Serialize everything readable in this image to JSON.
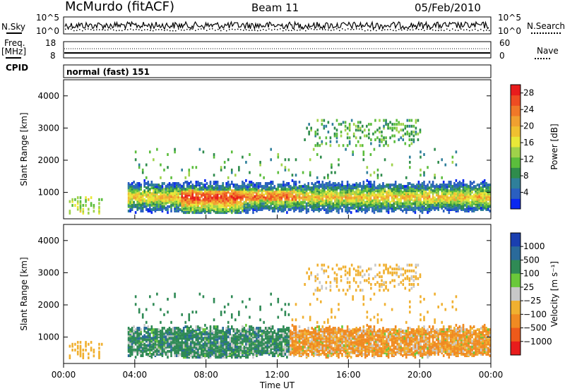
{
  "header": {
    "radar": "McMurdo (fitACF)",
    "beam": "Beam 11",
    "date": "05/Feb/2010"
  },
  "status_panels": {
    "nsky_label": "N.Sky",
    "nsky_ticks": [
      "10^5",
      "10^0"
    ],
    "nsearch_label": "N.Search",
    "nsearch_ticks": [
      "10^5",
      "10^0"
    ],
    "freq_label": "Freq.",
    "freq_unit": "[MHz]",
    "freq_ticks": [
      "18",
      "8"
    ],
    "nave_label": "Nave",
    "nave_ticks": [
      "60",
      "0"
    ],
    "cpid_label": "CPID",
    "cpid_value": "normal (fast) 151"
  },
  "chart_data": [
    {
      "type": "heatmap",
      "title": "",
      "xlabel": "Time UT",
      "ylabel": "Slant Range [km]",
      "x_ticks": [
        "00:00",
        "04:00",
        "08:00",
        "12:00",
        "16:00",
        "20:00",
        "00:00"
      ],
      "y_ticks": [
        1000,
        2000,
        3000,
        4000
      ],
      "ylim": [
        180,
        4500
      ],
      "xlim_hours": [
        0,
        24
      ],
      "colorbar": {
        "label": "Power [dB]",
        "ticks": [
          "4",
          "8",
          "12",
          "16",
          "20",
          "24",
          "28"
        ],
        "range": [
          0,
          30
        ],
        "colors": [
          "#0a28f0",
          "#2a5fc0",
          "#2f7f9a",
          "#2f8c4c",
          "#5bbd3c",
          "#9fd24a",
          "#e8e838",
          "#f0c030",
          "#f0a030",
          "#f07828",
          "#ee4c22",
          "#e81c1c"
        ]
      },
      "features": [
        {
          "what": "main echo band",
          "time_h": [
            3.6,
            24
          ],
          "range_km": [
            600,
            1250
          ],
          "peak_db": 28,
          "peak_time_h": [
            6.5,
            10
          ]
        },
        {
          "what": "far-range echoes",
          "time_h": [
            13.5,
            20
          ],
          "range_km": [
            2500,
            3300
          ],
          "typical_db": 10
        }
      ]
    },
    {
      "type": "heatmap",
      "title": "",
      "xlabel": "Time UT",
      "ylabel": "Slant Range [km]",
      "x_ticks": [
        "00:00",
        "04:00",
        "08:00",
        "12:00",
        "16:00",
        "20:00",
        "00:00"
      ],
      "y_ticks": [
        1000,
        2000,
        3000,
        4000
      ],
      "ylim": [
        180,
        4500
      ],
      "xlim_hours": [
        0,
        24
      ],
      "colorbar": {
        "label": "Velocity [m s⁻¹]",
        "ticks": [
          "1000",
          "500",
          "100",
          "25",
          "−25",
          "−100",
          "−500",
          "−1000"
        ],
        "colors": [
          "#1a3fb0",
          "#2a6a9a",
          "#2f8a55",
          "#6ac83a",
          "#c8c8c8",
          "#f0b030",
          "#f08a22",
          "#ee5a1a",
          "#e81c1c"
        ]
      },
      "features": [
        {
          "what": "positive velocities",
          "time_h": [
            3.6,
            12.5
          ],
          "range_km": [
            600,
            1250
          ],
          "velocity": "25 to 500"
        },
        {
          "what": "negative velocities",
          "time_h": [
            12.5,
            24
          ],
          "range_km": [
            600,
            1300
          ],
          "velocity": "-500 to -25"
        },
        {
          "what": "far-range echoes",
          "time_h": [
            13.5,
            20
          ],
          "range_km": [
            2500,
            3300
          ],
          "velocity": "-100"
        }
      ]
    }
  ]
}
